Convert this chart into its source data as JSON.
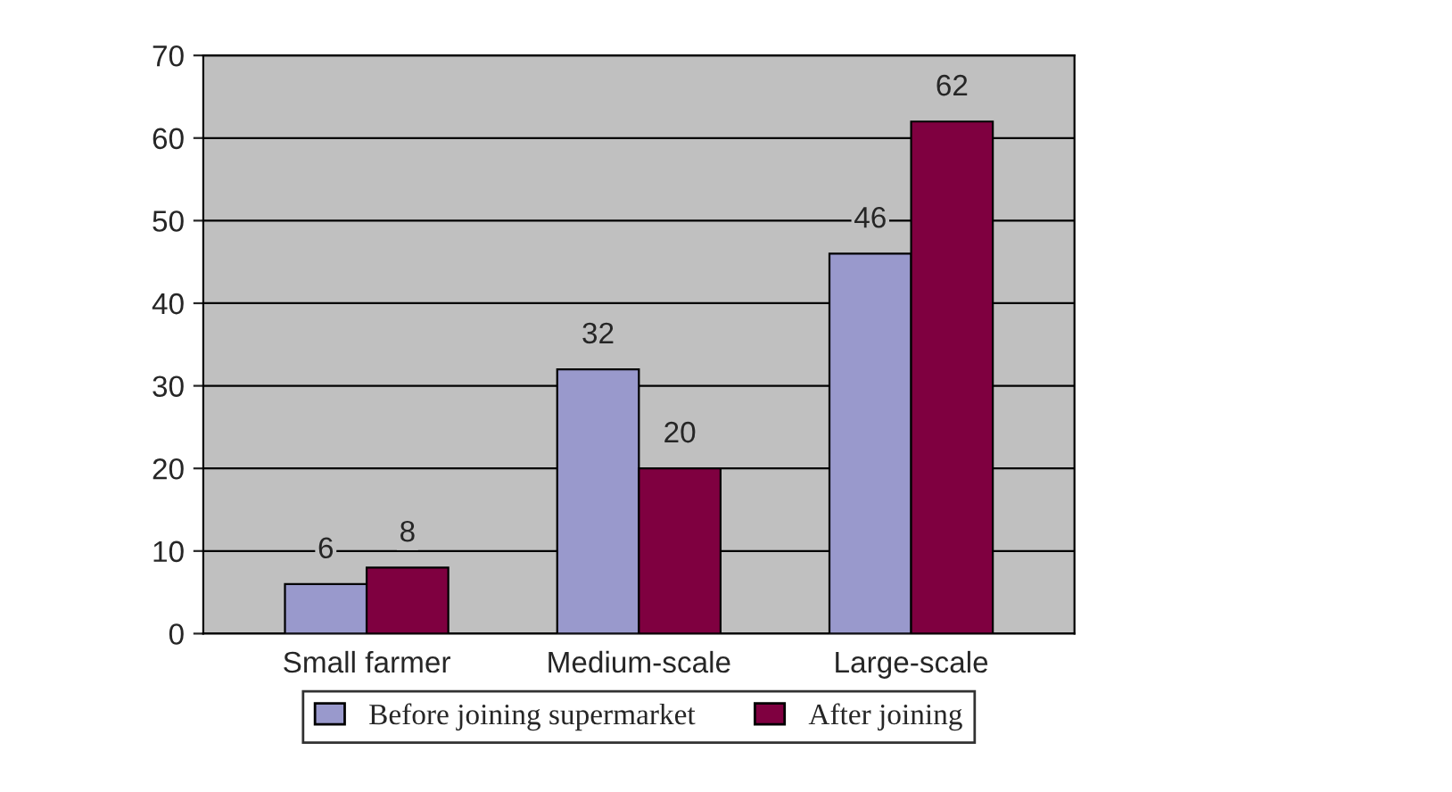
{
  "chart_data": {
    "type": "bar",
    "categories": [
      "Small farmer",
      "Medium-scale",
      "Large-scale"
    ],
    "series": [
      {
        "name": "Before joining supermarket",
        "color": "#9999cc",
        "values": [
          6,
          32,
          46
        ]
      },
      {
        "name": "After joining",
        "color": "#7f0040",
        "values": [
          8,
          20,
          62
        ]
      }
    ],
    "ylim": [
      0,
      70
    ],
    "yticks": [
      0,
      10,
      20,
      30,
      40,
      50,
      60,
      70
    ],
    "grid": "y",
    "legend": "bottom",
    "data_labels": true
  }
}
